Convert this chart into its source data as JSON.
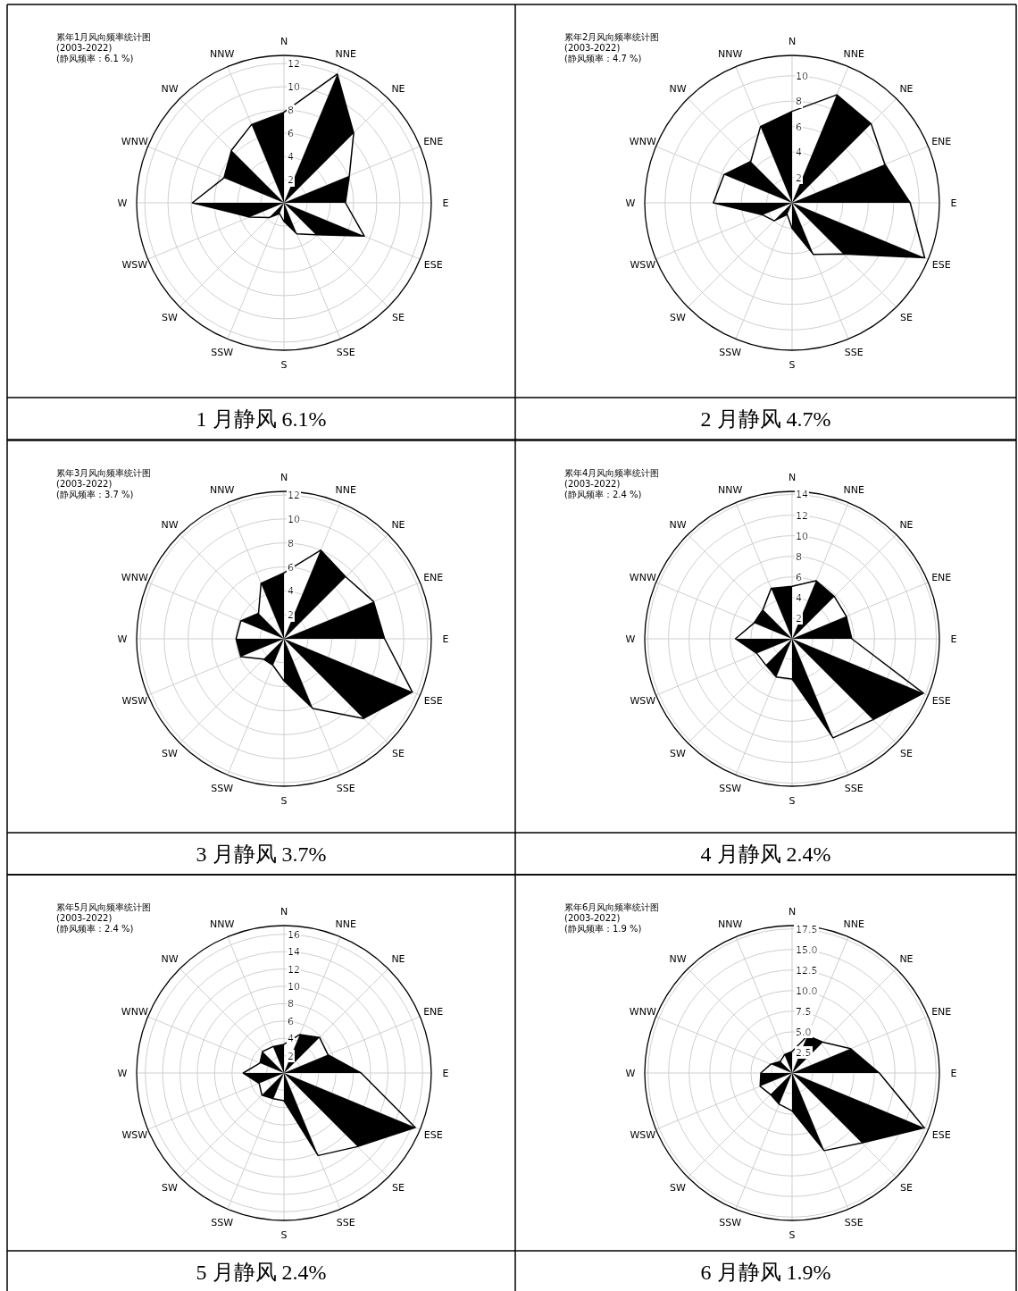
{
  "chart_data": [
    {
      "type": "radar",
      "title": "累年1月风向频率统计图",
      "subtitle": "(2003-2022)",
      "annotations": [
        "(静风频率：6.1 %)",
        "1 月静风 6.1%"
      ],
      "categories": [
        "N",
        "NNE",
        "NE",
        "ENE",
        "E",
        "ESE",
        "SE",
        "SSE",
        "S",
        "SSW",
        "SW",
        "WSW",
        "W",
        "WNW",
        "NW",
        "NNW"
      ],
      "ylim": [
        0,
        12.7
      ],
      "yticks": [
        2,
        4,
        6,
        8,
        10,
        12
      ],
      "grid": true,
      "series": [
        {
          "color": "#000000",
          "values": [
            7.8,
            12.0,
            8.5,
            6.1,
            5.3,
            7.5,
            3.9,
            2.9,
            1.6,
            1.0,
            1.8,
            3.2,
            7.9,
            5.6,
            6.4,
            7.3
          ]
        }
      ]
    },
    {
      "type": "radar",
      "title": "累年2月风向频率统计图",
      "subtitle": "(2003-2022)",
      "annotations": [
        "(静风频率：4.7 %)",
        "2 月静风 4.7%"
      ],
      "categories": [
        "N",
        "NNE",
        "NE",
        "ENE",
        "E",
        "ESE",
        "SE",
        "SSE",
        "S",
        "SSW",
        "SW",
        "WSW",
        "W",
        "WNW",
        "NW",
        "NNW"
      ],
      "ylim": [
        0,
        11.6
      ],
      "yticks": [
        2,
        4,
        6,
        8,
        10
      ],
      "grid": true,
      "series": [
        {
          "color": "#000000",
          "values": [
            7.2,
            9.2,
            8.8,
            7.9,
            9.3,
            11.3,
            5.7,
            4.4,
            2.0,
            1.0,
            2.0,
            2.5,
            6.2,
            5.8,
            4.6,
            6.5
          ]
        }
      ]
    },
    {
      "type": "radar",
      "title": "累年3月风向频率统计图",
      "subtitle": "(2003-2022)",
      "annotations": [
        "(静风频率：3.7 %)",
        "3 月静风 3.7%"
      ],
      "categories": [
        "N",
        "NNE",
        "NE",
        "ENE",
        "E",
        "ESE",
        "SE",
        "SSE",
        "S",
        "SSW",
        "SW",
        "WSW",
        "W",
        "WNW",
        "NW",
        "NNW"
      ],
      "ylim": [
        0,
        12.3
      ],
      "yticks": [
        2,
        4,
        6,
        8,
        10,
        12
      ],
      "grid": true,
      "series": [
        {
          "color": "#000000",
          "values": [
            5.5,
            8.0,
            7.3,
            8.1,
            8.4,
            11.6,
            9.4,
            6.3,
            3.5,
            2.4,
            2.4,
            3.9,
            4.0,
            3.9,
            3.0,
            5.0
          ]
        }
      ]
    },
    {
      "type": "radar",
      "title": "累年4月风向频率统计图",
      "subtitle": "(2003-2022)",
      "annotations": [
        "(静风频率：2.4 %)",
        "4 月静风 2.4%"
      ],
      "categories": [
        "N",
        "NNE",
        "NE",
        "ENE",
        "E",
        "ESE",
        "SE",
        "SSE",
        "S",
        "SSW",
        "SW",
        "WSW",
        "W",
        "WNW",
        "NW",
        "NNW"
      ],
      "ylim": [
        0,
        14.3
      ],
      "yticks": [
        2,
        4,
        6,
        8,
        10,
        12,
        14
      ],
      "grid": true,
      "series": [
        {
          "color": "#000000",
          "values": [
            5.1,
            6.1,
            5.8,
            5.7,
            5.8,
            13.8,
            11.1,
            10.4,
            3.9,
            4.0,
            3.6,
            3.7,
            5.5,
            4.0,
            4.0,
            5.3
          ]
        }
      ]
    },
    {
      "type": "radar",
      "title": "累年5月风向频率统计图",
      "subtitle": "(2003-2022)",
      "annotations": [
        "(静风频率：2.4 %)",
        "5 月静风 2.4%"
      ],
      "categories": [
        "N",
        "NNE",
        "NE",
        "ENE",
        "E",
        "ESE",
        "SE",
        "SSE",
        "S",
        "SSW",
        "SW",
        "WSW",
        "W",
        "WNW",
        "NW",
        "NNW"
      ],
      "ylim": [
        0,
        17.0
      ],
      "yticks": [
        2,
        4,
        6,
        8,
        10,
        12,
        14,
        16
      ],
      "grid": true,
      "series": [
        {
          "color": "#000000",
          "values": [
            3.3,
            4.8,
            5.8,
            5.5,
            8.9,
            16.4,
            12.0,
            10.3,
            3.2,
            3.2,
            3.6,
            3.1,
            4.7,
            3.0,
            3.5,
            3.3
          ]
        }
      ]
    },
    {
      "type": "radar",
      "title": "累年6月风向频率统计图",
      "subtitle": "(2003-2022)",
      "annotations": [
        "(静风频率：1.9 %)",
        "6 月静风 1.9%"
      ],
      "categories": [
        "N",
        "NNE",
        "NE",
        "ENE",
        "E",
        "ESE",
        "SE",
        "SSE",
        "S",
        "SSW",
        "SW",
        "WSW",
        "W",
        "WNW",
        "NW",
        "NNW"
      ],
      "ylim": [
        0,
        17.9
      ],
      "yticks": [
        {
          "value": 2.5,
          "label": "2.5"
        },
        {
          "value": 5,
          "label": "5.0"
        },
        {
          "value": 7.5,
          "label": "7.5"
        },
        {
          "value": 10,
          "label": "10.0"
        },
        {
          "value": 12.5,
          "label": "12.5"
        },
        {
          "value": 15,
          "label": "15.0"
        },
        {
          "value": 17.5,
          "label": "17.5"
        }
      ],
      "grid": true,
      "series": [
        {
          "color": "#000000",
          "values": [
            2.6,
            4.9,
            5.3,
            7.7,
            10.6,
            17.4,
            12.0,
            10.2,
            4.6,
            4.1,
            3.7,
            4.2,
            3.8,
            2.8,
            2.0,
            2.4
          ]
        }
      ]
    }
  ]
}
